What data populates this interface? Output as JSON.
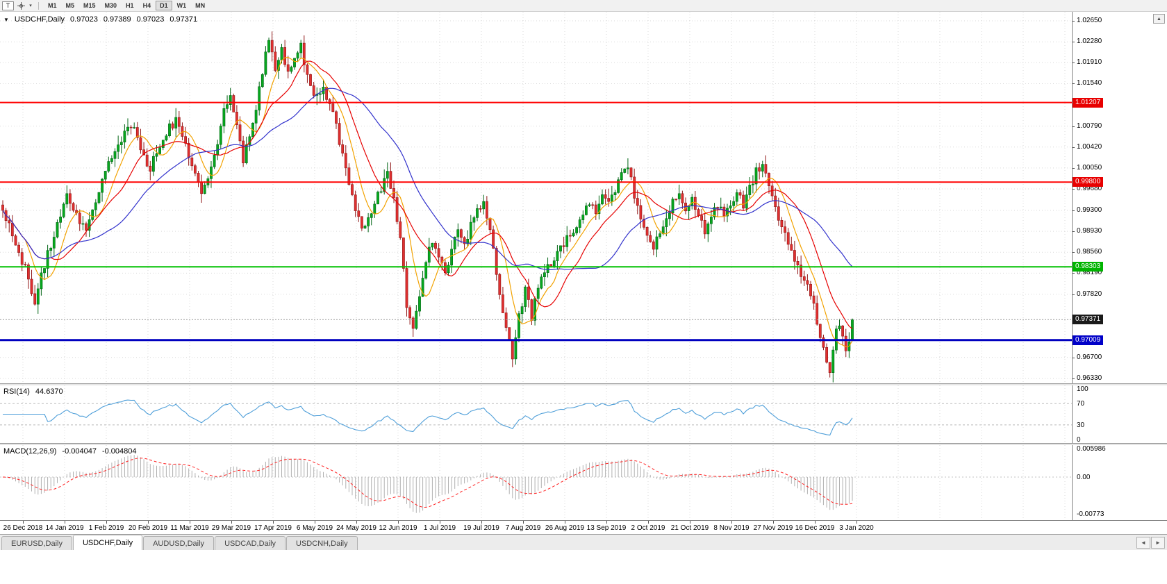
{
  "toolbar": {
    "text_tool_label": "T",
    "timeframes": [
      "M1",
      "M5",
      "M15",
      "M30",
      "H1",
      "H4",
      "D1",
      "W1",
      "MN"
    ],
    "active_timeframe": "D1"
  },
  "header": {
    "dropdown_icon": "▼",
    "symbol": "USDCHF,Daily",
    "open": "0.97023",
    "high": "0.97389",
    "low": "0.97023",
    "close": "0.97371"
  },
  "y_axis": {
    "ticks": [
      {
        "label": "1.02650",
        "price": 1.0265
      },
      {
        "label": "1.02280",
        "price": 1.0228
      },
      {
        "label": "1.01910",
        "price": 1.0191
      },
      {
        "label": "1.01540",
        "price": 1.0154
      },
      {
        "label": "1.00790",
        "price": 1.0079
      },
      {
        "label": "1.00420",
        "price": 1.0042
      },
      {
        "label": "1.00050",
        "price": 1.0005
      },
      {
        "label": "0.99680",
        "price": 0.9968
      },
      {
        "label": "0.99300",
        "price": 0.993
      },
      {
        "label": "0.98930",
        "price": 0.9893
      },
      {
        "label": "0.98560",
        "price": 0.9856
      },
      {
        "label": "0.98190",
        "price": 0.9819
      },
      {
        "label": "0.97820",
        "price": 0.9782
      },
      {
        "label": "0.96700",
        "price": 0.967
      },
      {
        "label": "0.96330",
        "price": 0.9633
      }
    ],
    "badges": [
      {
        "label": "1.01207",
        "price": 1.01207,
        "color": "#e80000",
        "text": "#ffffff"
      },
      {
        "label": "0.99800",
        "price": 0.998,
        "color": "#e80000",
        "text": "#ffffff"
      },
      {
        "label": "0.98303",
        "price": 0.98303,
        "color": "#00b400",
        "text": "#ffffff"
      },
      {
        "label": "0.97371",
        "price": 0.97371,
        "color": "#1a1a1a",
        "text": "#ffffff"
      },
      {
        "label": "0.97009",
        "price": 0.97009,
        "color": "#0000c8",
        "text": "#ffffff"
      }
    ]
  },
  "x_axis": {
    "labels": [
      "26 Dec 2018",
      "14 Jan 2019",
      "1 Feb 2019",
      "20 Feb 2019",
      "11 Mar 2019",
      "29 Mar 2019",
      "17 Apr 2019",
      "6 May 2019",
      "24 May 2019",
      "12 Jun 2019",
      "1 Jul 2019",
      "19 Jul 2019",
      "7 Aug 2019",
      "26 Aug 2019",
      "13 Sep 2019",
      "2 Oct 2019",
      "21 Oct 2019",
      "8 Nov 2019",
      "27 Nov 2019",
      "16 Dec 2019",
      "3 Jan 2020"
    ]
  },
  "rsi_panel": {
    "label": "RSI(14)",
    "value": "44.6370",
    "axis_labels": [
      "100",
      "70",
      "30",
      "0"
    ]
  },
  "macd_panel": {
    "label": "MACD(12,26,9)",
    "main_value": "-0.004047",
    "signal_value": "-0.004804",
    "axis_labels": [
      "0.005986",
      "0.00",
      "-0.00773"
    ]
  },
  "tabs": [
    "EURUSD,Daily",
    "USDCHF,Daily",
    "AUDUSD,Daily",
    "USDCAD,Daily",
    "USDCNH,Daily"
  ],
  "active_tab": "USDCHF,Daily",
  "tab_scroll": {
    "left_icon": "◄",
    "right_icon": "►"
  },
  "scroll_up_icon": "▲",
  "chart_data": {
    "type": "candlestick",
    "symbol": "USDCHF",
    "timeframe": "Daily",
    "visible_range": {
      "start": "26 Dec 2018",
      "end": "3 Jan 2020"
    },
    "total_candles": 266,
    "price_axis": {
      "min": 0.9633,
      "max": 1.0265
    },
    "last_candle": {
      "open": 0.97023,
      "high": 0.97389,
      "low": 0.97023,
      "close": 0.97371
    },
    "close_path_anchors": [
      [
        0,
        0.993
      ],
      [
        2,
        0.99
      ],
      [
        4,
        0.9862
      ],
      [
        6,
        0.984
      ],
      [
        8,
        0.9812
      ],
      [
        10,
        0.9758
      ],
      [
        12,
        0.9812
      ],
      [
        14,
        0.9855
      ],
      [
        17,
        0.9902
      ],
      [
        20,
        0.9958
      ],
      [
        23,
        0.9918
      ],
      [
        26,
        0.9896
      ],
      [
        28,
        0.9932
      ],
      [
        31,
        0.9988
      ],
      [
        34,
        1.0022
      ],
      [
        37,
        1.0058
      ],
      [
        39,
        1.0078
      ],
      [
        41,
        1.0082
      ],
      [
        43,
        1.004
      ],
      [
        46,
        1.0
      ],
      [
        48,
        1.0035
      ],
      [
        51,
        1.0068
      ],
      [
        54,
        1.009
      ],
      [
        56,
        1.006
      ],
      [
        59,
        1.0014
      ],
      [
        62,
        0.9958
      ],
      [
        64,
        0.9988
      ],
      [
        67,
        1.0052
      ],
      [
        69,
        1.0105
      ],
      [
        71,
        1.0133
      ],
      [
        73,
        1.0088
      ],
      [
        75,
        1.0018
      ],
      [
        77,
        1.0058
      ],
      [
        79,
        1.0112
      ],
      [
        81,
        1.0178
      ],
      [
        83,
        1.0235
      ],
      [
        85,
        1.0182
      ],
      [
        87,
        1.0215
      ],
      [
        89,
        1.0175
      ],
      [
        91,
        1.0196
      ],
      [
        93,
        1.0218
      ],
      [
        95,
        1.0163
      ],
      [
        97,
        1.0128
      ],
      [
        100,
        1.0148
      ],
      [
        103,
        1.0105
      ],
      [
        106,
        1.0028
      ],
      [
        109,
        0.9952
      ],
      [
        112,
        0.9892
      ],
      [
        115,
        0.993
      ],
      [
        118,
        0.9968
      ],
      [
        120,
        0.9992
      ],
      [
        122,
        0.9945
      ],
      [
        124,
        0.988
      ],
      [
        126,
        0.976
      ],
      [
        128,
        0.9718
      ],
      [
        130,
        0.9778
      ],
      [
        132,
        0.9845
      ],
      [
        134,
        0.9872
      ],
      [
        136,
        0.985
      ],
      [
        138,
        0.9815
      ],
      [
        140,
        0.9862
      ],
      [
        142,
        0.9888
      ],
      [
        144,
        0.9868
      ],
      [
        146,
        0.9902
      ],
      [
        148,
        0.9932
      ],
      [
        150,
        0.9945
      ],
      [
        152,
        0.9902
      ],
      [
        154,
        0.9822
      ],
      [
        156,
        0.9745
      ],
      [
        158,
        0.97
      ],
      [
        159,
        0.9672
      ],
      [
        161,
        0.9745
      ],
      [
        163,
        0.9788
      ],
      [
        165,
        0.9742
      ],
      [
        167,
        0.9795
      ],
      [
        169,
        0.9822
      ],
      [
        172,
        0.9845
      ],
      [
        175,
        0.9872
      ],
      [
        178,
        0.9898
      ],
      [
        181,
        0.9925
      ],
      [
        183,
        0.9945
      ],
      [
        185,
        0.9928
      ],
      [
        187,
        0.9958
      ],
      [
        189,
        0.9938
      ],
      [
        191,
        0.9968
      ],
      [
        193,
        0.9995
      ],
      [
        195,
        1.0008
      ],
      [
        197,
        0.9955
      ],
      [
        199,
        0.9918
      ],
      [
        201,
        0.989
      ],
      [
        203,
        0.9868
      ],
      [
        205,
        0.9892
      ],
      [
        207,
        0.992
      ],
      [
        209,
        0.9945
      ],
      [
        211,
        0.9958
      ],
      [
        213,
        0.993
      ],
      [
        215,
        0.9952
      ],
      [
        217,
        0.9925
      ],
      [
        219,
        0.9895
      ],
      [
        221,
        0.9915
      ],
      [
        223,
        0.9942
      ],
      [
        225,
        0.9922
      ],
      [
        227,
        0.9945
      ],
      [
        229,
        0.9962
      ],
      [
        231,
        0.994
      ],
      [
        233,
        0.997
      ],
      [
        235,
        0.9998
      ],
      [
        237,
        1.0008
      ],
      [
        239,
        0.9972
      ],
      [
        241,
        0.9935
      ],
      [
        243,
        0.9905
      ],
      [
        245,
        0.9875
      ],
      [
        247,
        0.9842
      ],
      [
        249,
        0.9815
      ],
      [
        251,
        0.9792
      ],
      [
        253,
        0.976
      ],
      [
        255,
        0.9712
      ],
      [
        257,
        0.9662
      ],
      [
        258,
        0.965
      ],
      [
        259,
        0.9682
      ],
      [
        260,
        0.9715
      ],
      [
        261,
        0.9732
      ],
      [
        262,
        0.9705
      ],
      [
        263,
        0.9688
      ],
      [
        264,
        0.97
      ],
      [
        265,
        0.9737
      ]
    ],
    "horizontal_lines": [
      {
        "name": "resistance-line-upper",
        "price": 1.01207,
        "color": "#ff0000",
        "style": "solid",
        "width": 2
      },
      {
        "name": "resistance-line-lower",
        "price": 0.998,
        "color": "#ff0000",
        "style": "solid",
        "width": 2
      },
      {
        "name": "support-line-green",
        "price": 0.98303,
        "color": "#00c000",
        "style": "solid",
        "width": 2
      },
      {
        "name": "support-line-blue",
        "price": 0.97009,
        "color": "#0000bf",
        "style": "solid",
        "width": 3
      },
      {
        "name": "last-price-line",
        "price": 0.97371,
        "color": "#9a9a9a",
        "style": "dotted",
        "width": 1
      }
    ],
    "moving_averages": [
      {
        "name": "ma-fast",
        "period": 8,
        "color": "#f2a200"
      },
      {
        "name": "ma-medium",
        "period": 16,
        "color": "#e60000"
      },
      {
        "name": "ma-slow",
        "period": 34,
        "color": "#3232cc"
      }
    ],
    "indicators": [
      {
        "name": "RSI",
        "params": "14",
        "current": 44.637,
        "levels": [
          100,
          70,
          30,
          0
        ],
        "line_color": "#4f9fd9"
      },
      {
        "name": "MACD",
        "params": "12,26,9",
        "main": -0.004047,
        "signal": -0.004804,
        "axis_ticks": [
          0.005986,
          0,
          -0.00773
        ],
        "histogram_color": "#b0b0b0",
        "signal_color": "#ff2020"
      }
    ],
    "colors": {
      "background": "#ffffff",
      "grid": "#d9d9d9",
      "candle_up": "#07a81e",
      "candle_up_edge": "#006414",
      "candle_down": "#e03030",
      "candle_down_edge": "#8f1515"
    }
  }
}
